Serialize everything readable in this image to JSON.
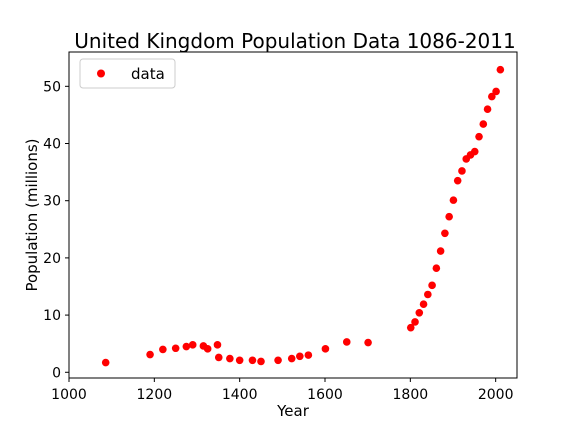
{
  "chart_data": {
    "type": "scatter",
    "title": "United Kingdom Population Data 1086-2011",
    "xlabel": "Year",
    "ylabel": "Population (millions)",
    "xlim": [
      1000,
      2050
    ],
    "ylim": [
      -1,
      56
    ],
    "xticks": [
      1000,
      1200,
      1400,
      1600,
      1800,
      2000
    ],
    "yticks": [
      0,
      10,
      20,
      30,
      40,
      50
    ],
    "grid": false,
    "legend": {
      "position": "top-left",
      "entries": [
        "data"
      ]
    },
    "marker_color": "#ff0000",
    "series": [
      {
        "name": "data",
        "x": [
          1086,
          1190,
          1220,
          1250,
          1275,
          1290,
          1315,
          1325,
          1348,
          1351,
          1377,
          1400,
          1430,
          1450,
          1490,
          1522,
          1541,
          1561,
          1601,
          1651,
          1701,
          1801,
          1811,
          1821,
          1831,
          1841,
          1851,
          1861,
          1871,
          1881,
          1891,
          1901,
          1911,
          1921,
          1931,
          1941,
          1951,
          1961,
          1971,
          1981,
          1991,
          2001,
          2011
        ],
        "y": [
          1.7,
          3.1,
          4.0,
          4.2,
          4.5,
          4.8,
          4.6,
          4.1,
          4.8,
          2.6,
          2.4,
          2.1,
          2.1,
          1.9,
          2.1,
          2.4,
          2.8,
          3.0,
          4.1,
          5.3,
          5.2,
          7.8,
          8.8,
          10.4,
          11.9,
          13.6,
          15.2,
          18.2,
          21.2,
          24.3,
          27.2,
          30.1,
          33.5,
          35.2,
          37.3,
          38.0,
          38.6,
          41.2,
          43.4,
          46.0,
          48.2,
          49.1,
          52.9
        ]
      }
    ]
  }
}
